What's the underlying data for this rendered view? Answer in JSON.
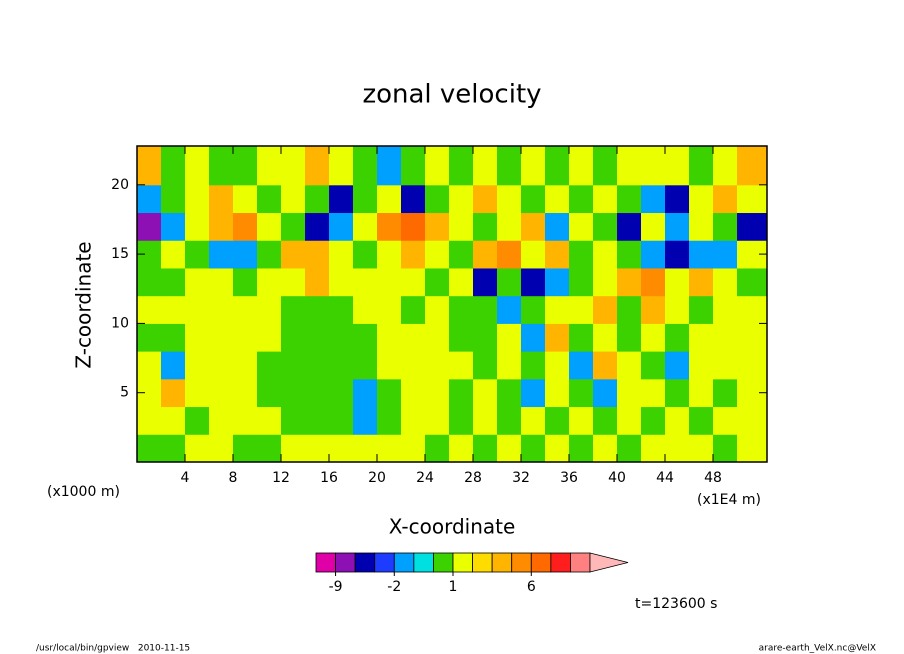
{
  "chart_data": {
    "type": "contour",
    "title": "zonal velocity",
    "x_label": "X-coordinate",
    "y_label": "Z-coordinate",
    "x_unit_note": "(x1E4 m)",
    "y_unit_note": "(x1000 m)",
    "time_note": "t=123600 s",
    "footer_left": "/usr/local/bin/gpview   2010-11-15",
    "footer_right": "arare-earth_VelX.nc@VelX",
    "xlim": [
      0,
      52.5
    ],
    "ylim": [
      0,
      22.8
    ],
    "xticks": [
      4,
      8,
      12,
      16,
      20,
      24,
      28,
      32,
      36,
      40,
      44,
      48
    ],
    "yticks": [
      5,
      10,
      15,
      20
    ],
    "x": [
      1,
      3,
      5,
      7,
      9,
      11,
      13,
      15,
      17,
      19,
      21,
      23,
      25,
      27,
      29,
      31,
      33,
      35,
      37,
      39,
      41,
      43,
      45,
      47,
      49,
      51
    ],
    "z": [
      1,
      3,
      5,
      7,
      9,
      11,
      13,
      15,
      17,
      19,
      21
    ],
    "values": [
      [
        0.5,
        0.5,
        1.5,
        1.5,
        0.5,
        0.5,
        1.5,
        1.5,
        1.5,
        1.5,
        1.5,
        1.5,
        0.5,
        1.5,
        0.5,
        1.5,
        0.5,
        1.5,
        0.5,
        1.5,
        0.5,
        1.5,
        1.5,
        1.5,
        0.5,
        1.5
      ],
      [
        1.5,
        1.5,
        0.5,
        1.5,
        1.5,
        1.5,
        0.5,
        0.5,
        0.5,
        -1.5,
        0.5,
        1.5,
        1.5,
        0.5,
        1.5,
        0.5,
        1.5,
        0.5,
        1.5,
        0.5,
        1.5,
        0.5,
        1.5,
        0.5,
        1.5,
        1.5
      ],
      [
        1.5,
        3.5,
        1.5,
        1.5,
        1.5,
        0.5,
        0.5,
        0.5,
        0.5,
        -1.5,
        0.5,
        1.5,
        1.5,
        0.5,
        1.5,
        0.5,
        -1.5,
        1.5,
        0.5,
        -1.5,
        1.5,
        1.5,
        0.5,
        1.5,
        0.5,
        1.5
      ],
      [
        1.5,
        -1.5,
        1.5,
        1.5,
        1.5,
        0.5,
        0.5,
        0.5,
        0.5,
        0.5,
        1.5,
        1.5,
        1.5,
        1.5,
        0.5,
        1.5,
        0.5,
        1.5,
        -1.5,
        3.5,
        1.5,
        0.5,
        -1.5,
        1.5,
        1.5,
        1.5
      ],
      [
        0.5,
        0.5,
        1.5,
        1.5,
        1.5,
        1.5,
        0.5,
        0.5,
        0.5,
        0.5,
        1.5,
        1.5,
        1.5,
        0.5,
        0.5,
        1.5,
        -1.5,
        3.5,
        0.5,
        1.5,
        0.5,
        1.5,
        0.5,
        1.5,
        1.5,
        1.5
      ],
      [
        1.5,
        1.5,
        1.5,
        1.5,
        1.5,
        1.5,
        0.5,
        0.5,
        0.5,
        1.5,
        1.5,
        0.5,
        1.5,
        0.5,
        0.5,
        -1.5,
        0.5,
        1.5,
        1.5,
        3.5,
        0.5,
        3.5,
        1.5,
        0.5,
        1.5,
        1.5
      ],
      [
        0.5,
        0.5,
        1.5,
        1.5,
        0.5,
        1.5,
        1.5,
        3.5,
        1.5,
        1.5,
        1.5,
        1.5,
        0.5,
        1.5,
        -4,
        0.5,
        -4,
        -1.5,
        0.5,
        1.5,
        3.5,
        5,
        1.5,
        3.5,
        1.5,
        0.5
      ],
      [
        0.5,
        1.5,
        0.5,
        -1.5,
        -1.5,
        0.5,
        3.5,
        3.5,
        1.5,
        0.5,
        1.5,
        3.5,
        1.5,
        0.5,
        3.5,
        5,
        1.5,
        3.5,
        0.5,
        1.5,
        0.5,
        -1.5,
        -4,
        -1.5,
        -1.5,
        1.5
      ],
      [
        -7,
        -1.5,
        1.5,
        3.5,
        5,
        1.5,
        0.5,
        -4,
        -1.5,
        1.5,
        5,
        7,
        3.5,
        1.5,
        0.5,
        1.5,
        3.5,
        -1.5,
        1.5,
        0.5,
        -4,
        1.5,
        -1.5,
        1.5,
        0.5,
        -4
      ],
      [
        -1.5,
        0.5,
        1.5,
        3.5,
        1.5,
        0.5,
        1.5,
        0.5,
        -4,
        0.5,
        1.5,
        -4,
        0.5,
        1.5,
        3.5,
        1.5,
        0.5,
        1.5,
        0.5,
        1.5,
        0.5,
        -1.5,
        -4,
        1.5,
        3.5,
        1.5
      ],
      [
        3.5,
        0.5,
        1.5,
        0.5,
        0.5,
        1.5,
        1.5,
        3.5,
        1.5,
        0.5,
        -1.5,
        0.5,
        1.5,
        0.5,
        1.5,
        0.5,
        1.5,
        0.5,
        1.5,
        0.5,
        1.5,
        1.5,
        1.5,
        0.5,
        1.5,
        3.5
      ]
    ],
    "colorbar": {
      "levels": [
        -12,
        -9,
        -6,
        -3,
        -2,
        -1,
        0,
        1,
        2,
        3,
        4,
        6,
        9,
        12,
        15
      ],
      "colors": [
        "#e000a8",
        "#8c10b4",
        "#0000b0",
        "#1e3cff",
        "#00a0ff",
        "#00e0e0",
        "#3cd200",
        "#eaff00",
        "#ffdc00",
        "#ffb400",
        "#ff8c00",
        "#ff6a00",
        "#ff1e1e",
        "#ff8080"
      ],
      "extend_color": "#ffb8b8",
      "ticks": [
        -9,
        -2,
        1,
        6
      ]
    }
  }
}
